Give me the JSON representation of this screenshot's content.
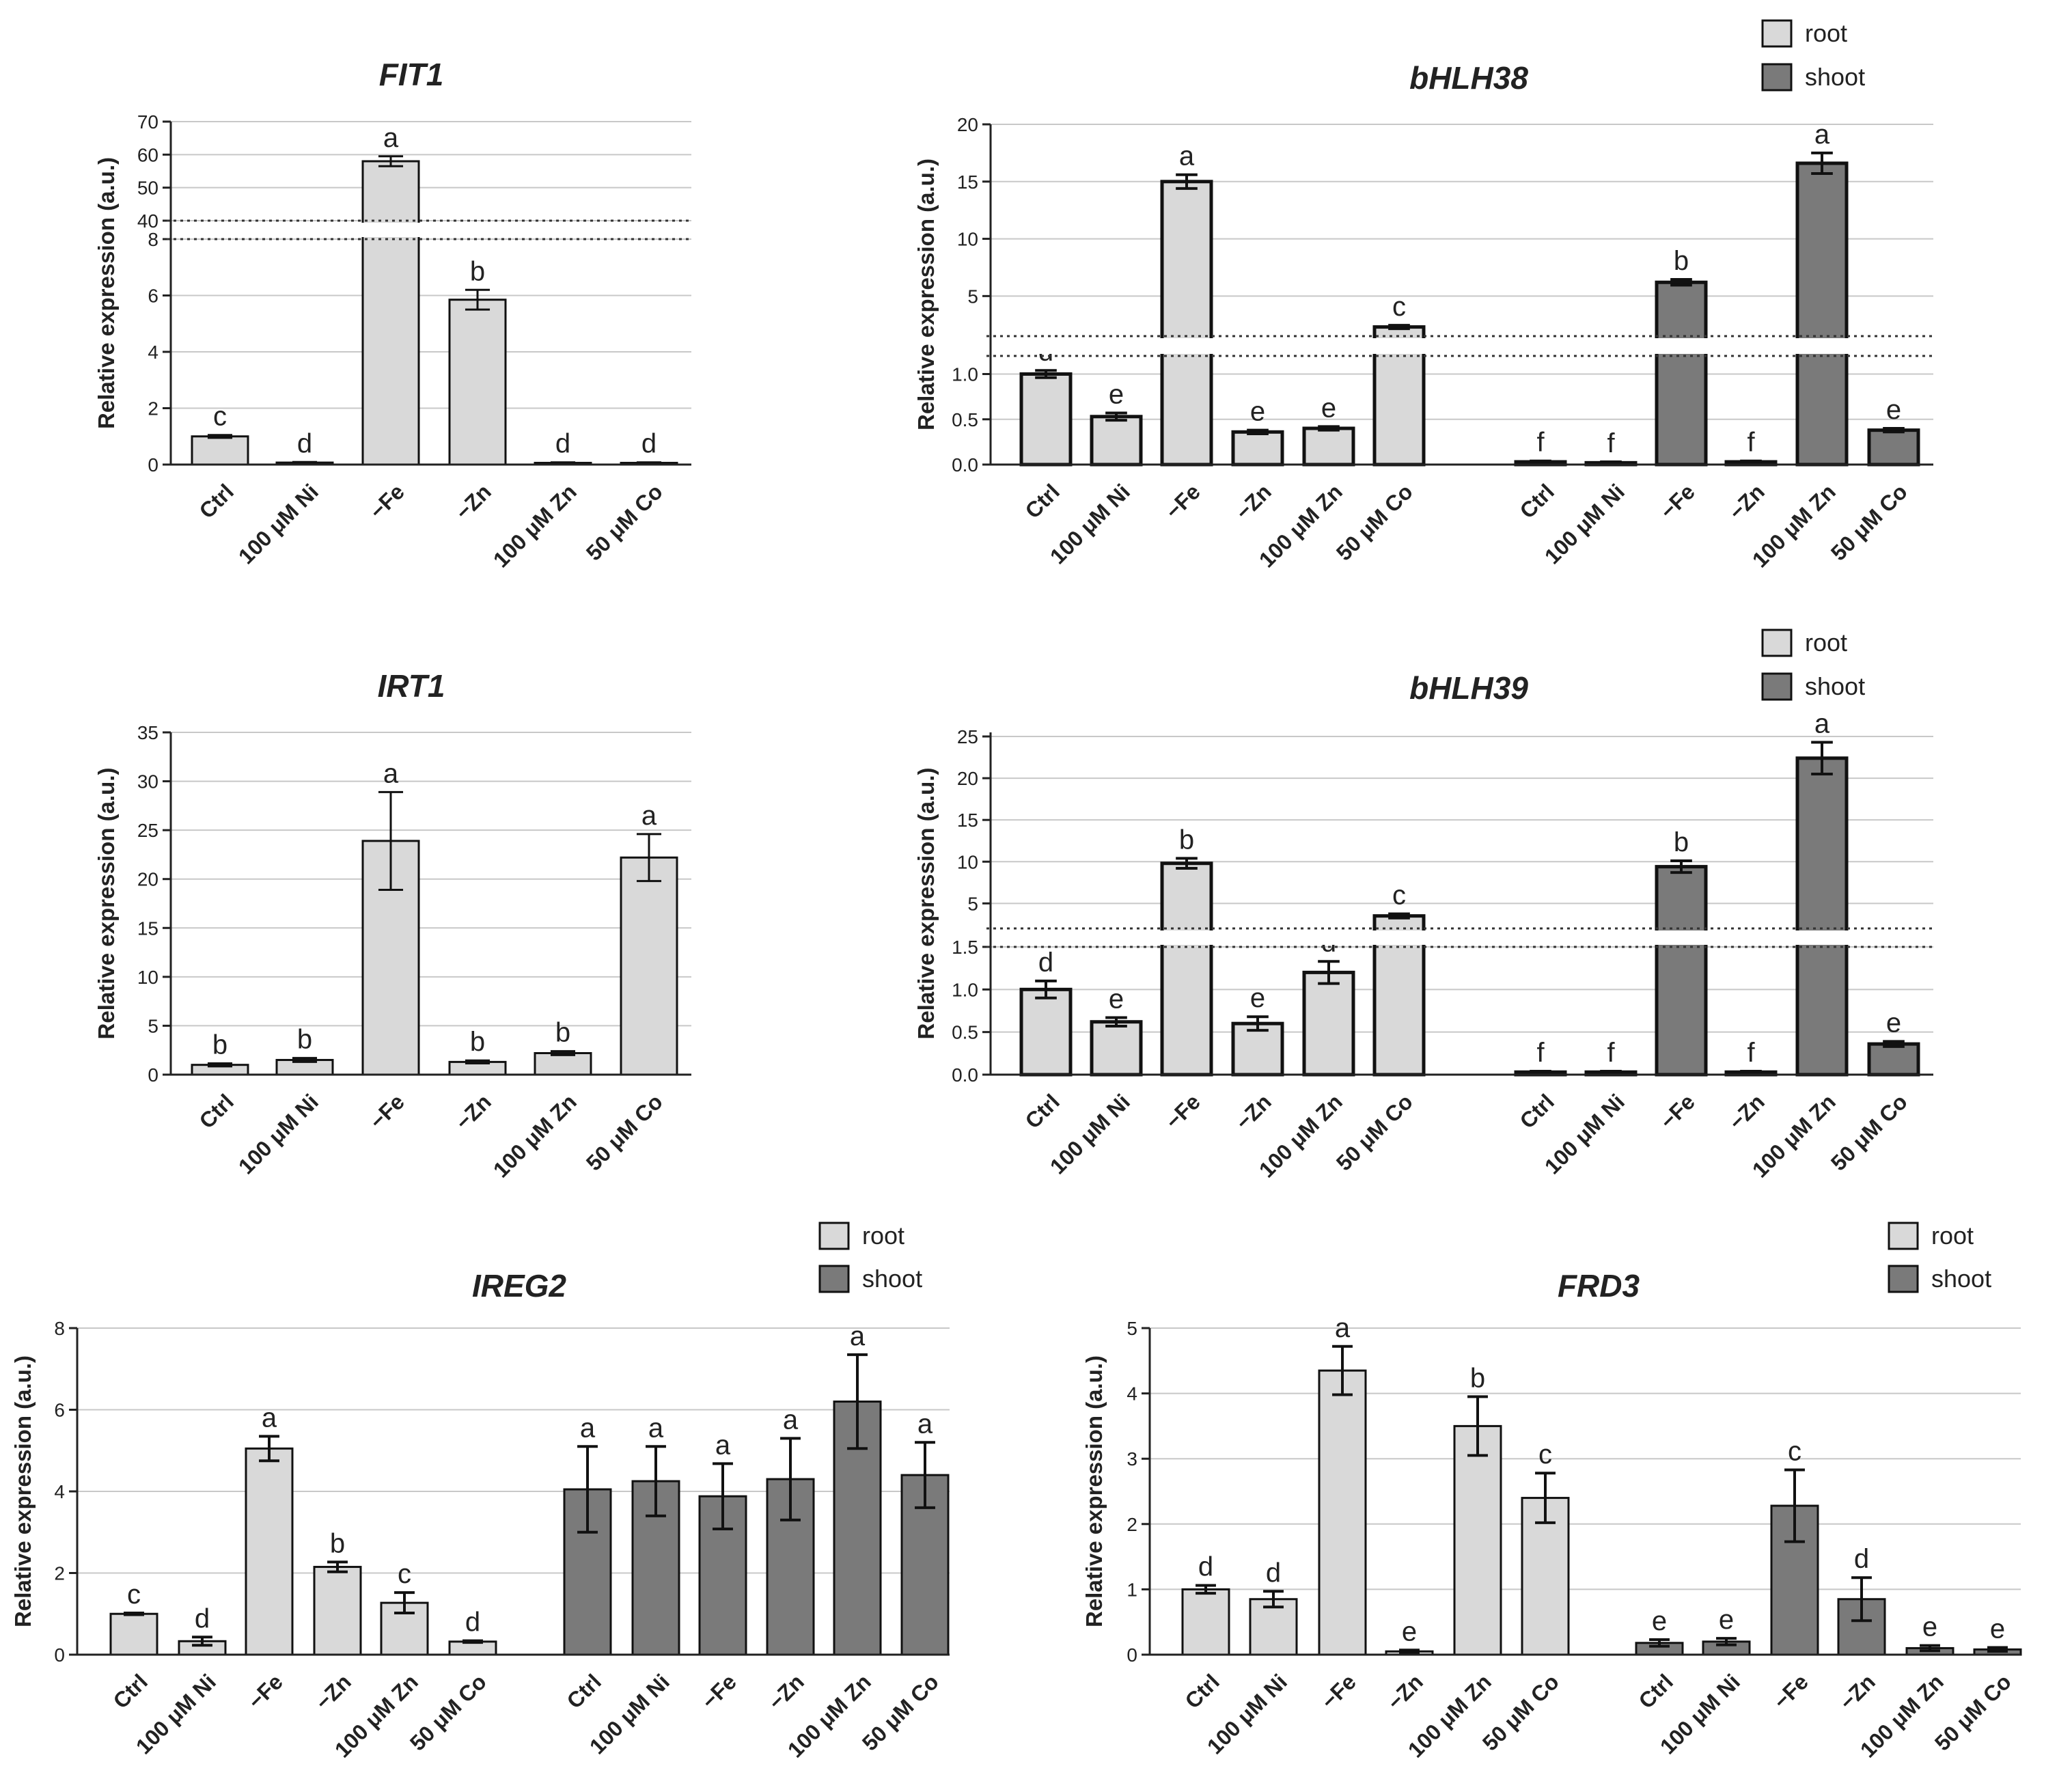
{
  "colors": {
    "root": "#d9d9d9",
    "shoot": "#7a7a7a",
    "axis": "#222222",
    "grid": "#c8c8c8"
  },
  "legend": {
    "root": "root",
    "shoot": "shoot"
  },
  "ylabel": "Relative expression (a.u.)",
  "categories": [
    "Ctrl",
    "100 μM Ni",
    "−Fe",
    "−Zn",
    "100 μM Zn",
    "50 μM Co"
  ],
  "chart_data": [
    {
      "id": "FIT1",
      "type": "bar",
      "title": "FIT1",
      "ylabel": "Relative expression (a.u.)",
      "legend": false,
      "broken": true,
      "lower_range": [
        0,
        8
      ],
      "lower_ticks": [
        "0",
        "2",
        "4",
        "6",
        "8"
      ],
      "upper_range": [
        40,
        70
      ],
      "upper_ticks": [
        "40",
        "50",
        "60",
        "70"
      ],
      "categories": [
        "Ctrl",
        "100 μM Ni",
        "−Fe",
        "−Zn",
        "100 μM Zn",
        "50 μM Co"
      ],
      "series": [
        {
          "name": "root",
          "values": [
            1.0,
            0.07,
            58,
            5.85,
            0.06,
            0.06
          ],
          "errors": [
            0.05,
            0.02,
            1.5,
            0.35,
            0.02,
            0.02
          ],
          "letters": [
            "c",
            "d",
            "a",
            "b",
            "d",
            "d"
          ]
        }
      ]
    },
    {
      "id": "bHLH38",
      "type": "bar",
      "title": "bHLH38",
      "ylabel": "Relative expression (a.u.)",
      "legend": true,
      "broken": true,
      "lower_range": [
        0,
        1.2
      ],
      "lower_ticks": [
        "0.0",
        "0.5",
        "1.0"
      ],
      "upper_range": [
        1.5,
        20
      ],
      "upper_ticks": [
        "5",
        "10",
        "15",
        "20"
      ],
      "categories": [
        "Ctrl",
        "100 μM Ni",
        "−Fe",
        "−Zn",
        "100 μM Zn",
        "50 μM Co"
      ],
      "series": [
        {
          "name": "root",
          "values": [
            1.0,
            0.53,
            15.0,
            0.36,
            0.4,
            2.3
          ],
          "errors": [
            0.04,
            0.04,
            0.6,
            0.02,
            0.02,
            0.15
          ],
          "letters": [
            "d",
            "e",
            "a",
            "e",
            "e",
            "c"
          ]
        },
        {
          "name": "shoot",
          "values": [
            0.03,
            0.02,
            6.2,
            0.03,
            16.6,
            0.38
          ],
          "errors": [
            0.01,
            0.01,
            0.25,
            0.01,
            0.9,
            0.02
          ],
          "letters": [
            "f",
            "f",
            "b",
            "f",
            "a",
            "e"
          ]
        }
      ]
    },
    {
      "id": "IRT1",
      "type": "bar",
      "title": "IRT1",
      "ylabel": "Relative expression (a.u.)",
      "legend": false,
      "broken": false,
      "range": [
        0,
        35
      ],
      "ticks": [
        "0",
        "5",
        "10",
        "15",
        "20",
        "25",
        "30",
        "35"
      ],
      "categories": [
        "Ctrl",
        "100 μM Ni",
        "−Fe",
        "−Zn",
        "100 μM Zn",
        "50 μM Co"
      ],
      "series": [
        {
          "name": "root",
          "values": [
            1.0,
            1.5,
            23.9,
            1.3,
            2.2,
            22.2
          ],
          "errors": [
            0.15,
            0.2,
            5.0,
            0.15,
            0.2,
            2.4
          ],
          "letters": [
            "b",
            "b",
            "a",
            "b",
            "b",
            "a"
          ]
        }
      ]
    },
    {
      "id": "bHLH39",
      "type": "bar",
      "title": "bHLH39",
      "ylabel": "Relative expression (a.u.)",
      "legend": true,
      "broken": true,
      "lower_range": [
        0,
        1.5
      ],
      "lower_ticks": [
        "0.0",
        "0.5",
        "1.0",
        "1.5"
      ],
      "upper_range": [
        2,
        25
      ],
      "upper_ticks": [
        "5",
        "10",
        "15",
        "20",
        "25"
      ],
      "categories": [
        "Ctrl",
        "100 μM Ni",
        "−Fe",
        "−Zn",
        "100 μM Zn",
        "50 μM Co"
      ],
      "series": [
        {
          "name": "root",
          "values": [
            1.0,
            0.62,
            9.8,
            0.6,
            1.2,
            3.5
          ],
          "errors": [
            0.1,
            0.05,
            0.6,
            0.08,
            0.13,
            0.25
          ],
          "letters": [
            "d",
            "e",
            "b",
            "e",
            "d",
            "c"
          ]
        },
        {
          "name": "shoot",
          "values": [
            0.03,
            0.03,
            9.4,
            0.03,
            22.4,
            0.36
          ],
          "errors": [
            0.01,
            0.01,
            0.7,
            0.01,
            1.9,
            0.03
          ],
          "letters": [
            "f",
            "f",
            "b",
            "f",
            "a",
            "e"
          ]
        }
      ]
    },
    {
      "id": "IREG2",
      "type": "bar",
      "title": "IREG2",
      "ylabel": "Relative expression (a.u.)",
      "legend": true,
      "broken": false,
      "range": [
        0,
        8
      ],
      "ticks": [
        "0",
        "2",
        "4",
        "6",
        "8"
      ],
      "categories": [
        "Ctrl",
        "100 μM Ni",
        "−Fe",
        "−Zn",
        "100 μM Zn",
        "50 μM Co"
      ],
      "series": [
        {
          "name": "root",
          "values": [
            1.0,
            0.33,
            5.05,
            2.15,
            1.27,
            0.32
          ],
          "errors": [
            0.02,
            0.1,
            0.3,
            0.12,
            0.25,
            0.02
          ],
          "letters": [
            "c",
            "d",
            "a",
            "b",
            "c",
            "d"
          ]
        },
        {
          "name": "shoot",
          "values": [
            4.05,
            4.25,
            3.88,
            4.3,
            6.2,
            4.4
          ],
          "errors": [
            1.05,
            0.85,
            0.8,
            1.0,
            1.15,
            0.8
          ],
          "letters": [
            "a",
            "a",
            "a",
            "a",
            "a",
            "a"
          ]
        }
      ]
    },
    {
      "id": "FRD3",
      "type": "bar",
      "title": "FRD3",
      "ylabel": "Relative expression (a.u.)",
      "legend": true,
      "broken": false,
      "range": [
        0,
        5
      ],
      "ticks": [
        "0",
        "1",
        "2",
        "3",
        "4",
        "5"
      ],
      "categories": [
        "Ctrl",
        "100 μM Ni",
        "−Fe",
        "−Zn",
        "100 μM Zn",
        "50 μM Co"
      ],
      "series": [
        {
          "name": "root",
          "values": [
            1.0,
            0.85,
            4.35,
            0.05,
            3.5,
            2.4
          ],
          "errors": [
            0.06,
            0.12,
            0.37,
            0.02,
            0.45,
            0.38
          ],
          "letters": [
            "d",
            "d",
            "a",
            "e",
            "b",
            "c"
          ]
        },
        {
          "name": "shoot",
          "values": [
            0.18,
            0.2,
            2.28,
            0.85,
            0.1,
            0.08
          ],
          "errors": [
            0.05,
            0.05,
            0.55,
            0.33,
            0.04,
            0.03
          ],
          "letters": [
            "e",
            "e",
            "c",
            "d",
            "e",
            "e"
          ]
        }
      ]
    }
  ]
}
